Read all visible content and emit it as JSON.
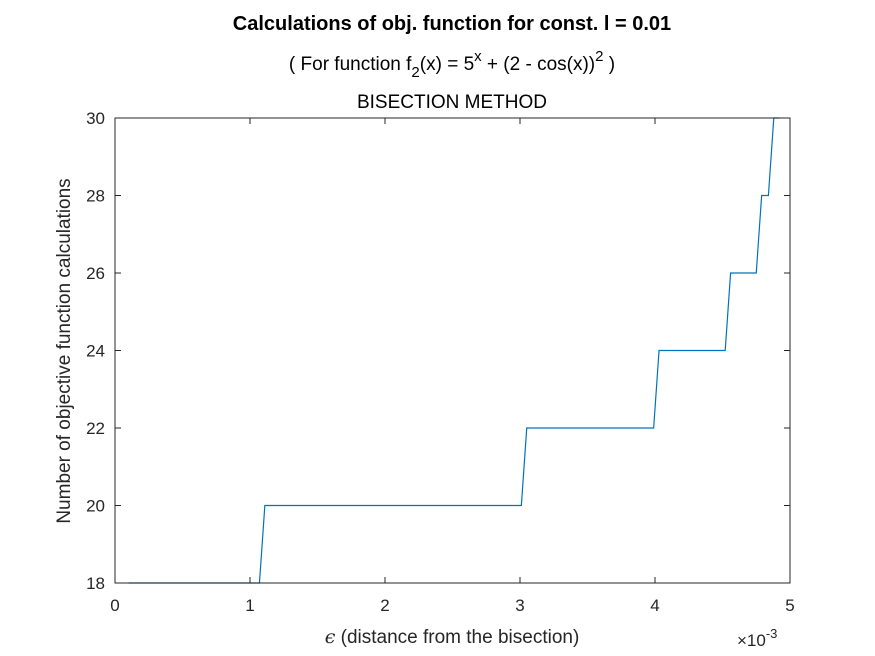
{
  "chart_data": {
    "type": "line",
    "title": "Calculations of obj. function for const. l = 0.01",
    "subtitle": {
      "prefix": "( For function f",
      "sub": "2",
      "middle": "(x) = 5",
      "sup_x": "x",
      "tail": " + (2 - cos(x))",
      "sup_2": "2",
      "end": " )"
    },
    "method": "BISECTION METHOD",
    "xlabel_symbol": "ϵ",
    "xlabel": " (distance from the bisection)",
    "ylabel": "Number of objective function calculations",
    "x_exponent_base": "×10",
    "x_exponent_power": "-3",
    "xlim": [
      0,
      0.005
    ],
    "ylim": [
      18,
      30
    ],
    "xticks": [
      0,
      0.001,
      0.002,
      0.003,
      0.004,
      0.005
    ],
    "xtick_labels": [
      "0",
      "1",
      "2",
      "3",
      "4",
      "5"
    ],
    "yticks": [
      18,
      20,
      22,
      24,
      26,
      28,
      30
    ],
    "ytick_labels": [
      "18",
      "20",
      "22",
      "24",
      "26",
      "28",
      "30"
    ],
    "grid": false,
    "line_color": "#0072BD",
    "series": [
      {
        "x": [
          0.0001,
          0.00107,
          0.00111,
          0.00301,
          0.00305,
          0.00399,
          0.00403,
          0.00452,
          0.00456,
          0.00475,
          0.00479,
          0.00484,
          0.00488,
          0.00492
        ],
        "y": [
          18,
          18,
          20,
          20,
          22,
          22,
          24,
          24,
          26,
          26,
          28,
          28,
          30,
          30
        ]
      }
    ]
  }
}
